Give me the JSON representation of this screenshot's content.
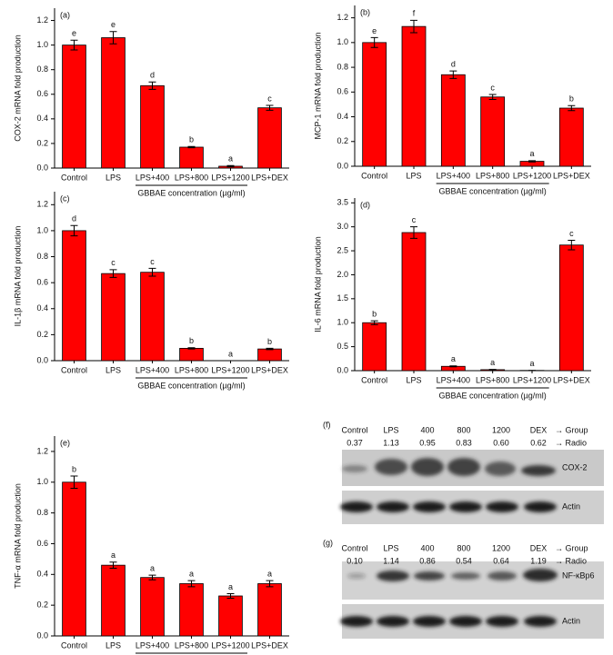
{
  "chart_data": [
    {
      "type": "bar",
      "panel": "(a)",
      "ylabel": "COX-2 mRNA fold production",
      "xlabel": "GBBAE concentration (µg/ml)",
      "categories": [
        "Control",
        "LPS",
        "LPS+400",
        "LPS+800",
        "LPS+1200",
        "LPS+DEX"
      ],
      "values": [
        1.0,
        1.06,
        0.67,
        0.17,
        0.015,
        0.49
      ],
      "errors": [
        0.04,
        0.05,
        0.03,
        0.005,
        0.005,
        0.02
      ],
      "letters": [
        "e",
        "e",
        "d",
        "b",
        "a",
        "c"
      ],
      "color": "#ff0000",
      "ylim": [
        0,
        1.3
      ],
      "yticks": [
        {
          "value": 0,
          "label": "0.0"
        },
        0.2,
        0.4,
        0.6,
        0.8,
        {
          "value": 1,
          "label": "1.0"
        },
        1.2
      ]
    },
    {
      "type": "bar",
      "panel": "(b)",
      "ylabel": "MCP-1 mRNA fold production",
      "xlabel": "GBBAE concentration (µg/ml)",
      "categories": [
        "Control",
        "LPS",
        "LPS+400",
        "LPS+800",
        "LPS+1200",
        "LPS+DEX"
      ],
      "values": [
        1.0,
        1.13,
        0.74,
        0.56,
        0.04,
        0.47
      ],
      "errors": [
        0.04,
        0.05,
        0.03,
        0.02,
        0.005,
        0.02
      ],
      "letters": [
        "e",
        "f",
        "d",
        "c",
        "a",
        "b"
      ],
      "color": "#ff0000",
      "ylim": [
        0,
        1.3
      ],
      "yticks": [
        {
          "value": 0,
          "label": "0.0"
        },
        0.2,
        0.4,
        0.6,
        0.8,
        {
          "value": 1,
          "label": "1.0"
        },
        1.2
      ]
    },
    {
      "type": "bar",
      "panel": "(c)",
      "ylabel": "IL-1β mRNA fold production",
      "xlabel": "GBBAE concentration (µg/ml)",
      "categories": [
        "Control",
        "LPS",
        "LPS+400",
        "LPS+800",
        "LPS+1200",
        "LPS+DEX"
      ],
      "values": [
        1.0,
        0.67,
        0.68,
        0.095,
        0,
        0.09
      ],
      "errors": [
        0.04,
        0.03,
        0.03,
        0.005,
        0,
        0.005
      ],
      "letters": [
        "d",
        "c",
        "c",
        "b",
        "a",
        "b"
      ],
      "color": "#ff0000",
      "ylim": [
        0,
        1.3
      ],
      "yticks": [
        {
          "value": 0,
          "label": "0.0"
        },
        0.2,
        0.4,
        0.6,
        0.8,
        {
          "value": 1,
          "label": "1.0"
        },
        1.2
      ]
    },
    {
      "type": "bar",
      "panel": "(d)",
      "ylabel": "IL-6 mRNA fold production",
      "xlabel": "GBBAE concentration (µg/ml)",
      "categories": [
        "Control",
        "LPS",
        "LPS+400",
        "LPS+800",
        "LPS+1200",
        "LPS+DEX"
      ],
      "values": [
        1.0,
        2.88,
        0.09,
        0.02,
        0.005,
        2.62
      ],
      "errors": [
        0.04,
        0.12,
        0.01,
        0.005,
        0,
        0.1
      ],
      "letters": [
        "b",
        "c",
        "a",
        "a",
        "a",
        "c"
      ],
      "color": "#ff0000",
      "ylim": [
        0,
        3.6
      ],
      "yticks": [
        {
          "value": 0,
          "label": "0.0"
        },
        0.5,
        {
          "value": 1,
          "label": "1.0"
        },
        1.5,
        {
          "value": 2,
          "label": "2.0"
        },
        2.5,
        {
          "value": 3,
          "label": "3.0"
        },
        3.5
      ]
    },
    {
      "type": "bar",
      "panel": "(e)",
      "ylabel": "TNF-α mRNA fold production",
      "xlabel": "GBBAE concentration (µg/ml)",
      "categories": [
        "Control",
        "LPS",
        "LPS+400",
        "LPS+800",
        "LPS+1200",
        "LPS+DEX"
      ],
      "values": [
        1.0,
        0.46,
        0.38,
        0.34,
        0.26,
        0.34
      ],
      "errors": [
        0.04,
        0.02,
        0.015,
        0.02,
        0.015,
        0.02
      ],
      "letters": [
        "b",
        "a",
        "a",
        "a",
        "a",
        "a"
      ],
      "color": "#ff0000",
      "ylim": [
        0,
        1.3
      ],
      "yticks": [
        {
          "value": 0,
          "label": "0.0"
        },
        0.2,
        0.4,
        0.6,
        0.8,
        {
          "value": 1,
          "label": "1.0"
        },
        1.2
      ]
    }
  ],
  "blots": [
    {
      "panel": "(f)",
      "groups": [
        "Control",
        "LPS",
        "400",
        "800",
        "1200",
        "DEX"
      ],
      "group_label": "→ Group",
      "ratios": [
        "0.37",
        "1.13",
        "0.95",
        "0.83",
        "0.60",
        "0.62"
      ],
      "ratio_label": "→ Radio",
      "bands": [
        "COX-2",
        "Actin"
      ]
    },
    {
      "panel": "(g)",
      "groups": [
        "Control",
        "LPS",
        "400",
        "800",
        "1200",
        "DEX"
      ],
      "group_label": "→ Group",
      "ratios": [
        "0.10",
        "1.14",
        "0.86",
        "0.54",
        "0.64",
        "1.19"
      ],
      "ratio_label": "→ Radio",
      "bands": [
        "NF-κBp6",
        "Actin"
      ]
    }
  ]
}
